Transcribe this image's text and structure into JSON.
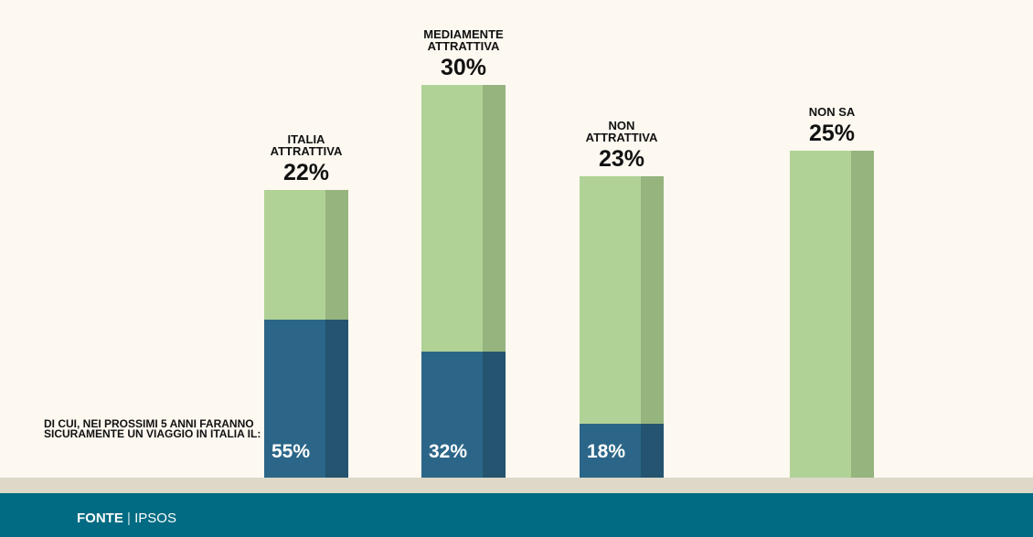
{
  "chart_data": {
    "type": "bar",
    "categories": [
      "ITALIA ATTRATTIVA",
      "MEDIAMENTE ATTRATTIVA",
      "NON ATTRATTIVA",
      "NON SA"
    ],
    "values": [
      22,
      30,
      23,
      25
    ],
    "value_labels": [
      "22%",
      "30%",
      "23%",
      "25%"
    ],
    "color": "#b0d296",
    "share": {
      "name": "DI CUI, NEI PROSSIMI 5 ANNI FARANNO SICURAMENTE UN VIAGGIO IN ITALIA IL:",
      "values": [
        55,
        32,
        18,
        null
      ],
      "value_labels": [
        "55%",
        "32%",
        "18%",
        null
      ],
      "color": "#2b6688"
    },
    "source": {
      "label": "FONTE",
      "name": "IPSOS"
    }
  }
}
